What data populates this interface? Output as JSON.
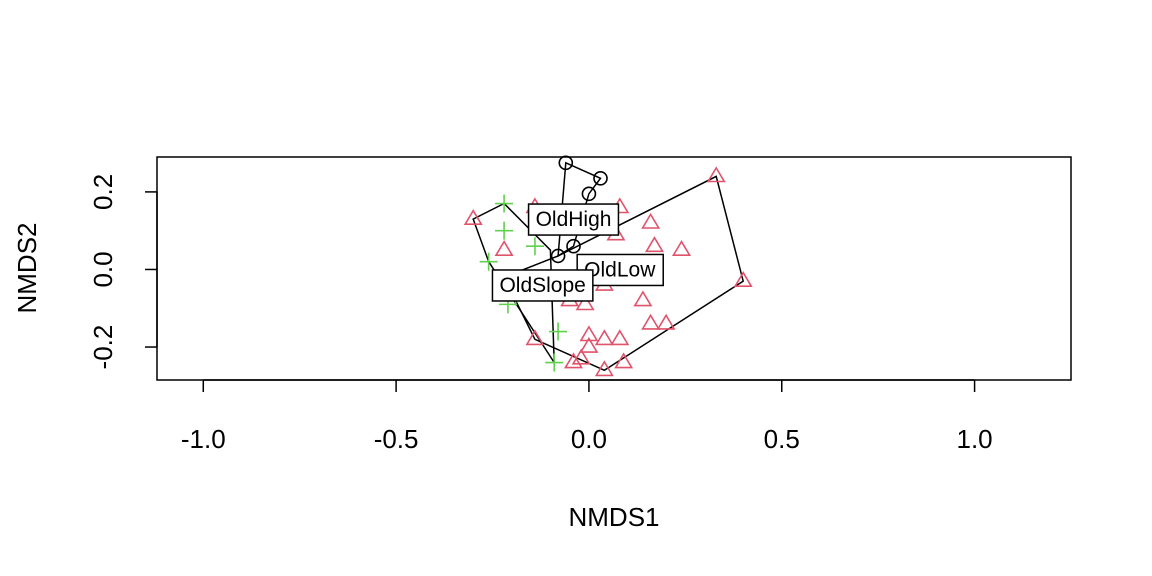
{
  "chart_data": {
    "type": "scatter",
    "title": "",
    "xlabel": "NMDS1",
    "ylabel": "NMDS2",
    "xlim": [
      -1.12,
      1.25
    ],
    "ylim": [
      -0.285,
      0.29
    ],
    "x_ticks": [
      -1.0,
      -0.5,
      0.0,
      0.5,
      1.0
    ],
    "x_tick_labels": [
      "-1.0",
      "-0.5",
      "0.0",
      "0.5",
      "1.0"
    ],
    "y_ticks": [
      -0.2,
      0.0,
      0.2
    ],
    "y_tick_labels": [
      "-0.2",
      "0.0",
      "0.2"
    ],
    "grid": false,
    "legend": "none",
    "series": [
      {
        "marker": "circle",
        "color": "#000000",
        "points": [
          [
            -0.06,
            0.275
          ],
          [
            0.03,
            0.235
          ],
          [
            0.0,
            0.195
          ],
          [
            -0.04,
            0.06
          ],
          [
            -0.08,
            0.035
          ]
        ]
      },
      {
        "marker": "triangle",
        "color": "#DF536B",
        "points": [
          [
            -0.3,
            0.13
          ],
          [
            -0.14,
            0.16
          ],
          [
            -0.22,
            0.05
          ],
          [
            0.08,
            0.16
          ],
          [
            0.16,
            0.12
          ],
          [
            0.07,
            0.09
          ],
          [
            0.17,
            0.06
          ],
          [
            0.24,
            0.05
          ],
          [
            0.33,
            0.24
          ],
          [
            0.4,
            -0.03
          ],
          [
            0.04,
            -0.04
          ],
          [
            0.14,
            -0.08
          ],
          [
            -0.05,
            -0.08
          ],
          [
            -0.01,
            -0.09
          ],
          [
            0.16,
            -0.14
          ],
          [
            0.2,
            -0.14
          ],
          [
            0.0,
            -0.17
          ],
          [
            0.04,
            -0.18
          ],
          [
            0.08,
            -0.18
          ],
          [
            0.0,
            -0.2
          ],
          [
            -0.14,
            -0.18
          ],
          [
            -0.02,
            -0.23
          ],
          [
            -0.04,
            -0.24
          ],
          [
            0.09,
            -0.24
          ],
          [
            0.04,
            -0.26
          ]
        ]
      },
      {
        "marker": "plus",
        "color": "#61D04F",
        "points": [
          [
            -0.22,
            0.17
          ],
          [
            -0.22,
            0.1
          ],
          [
            -0.14,
            0.06
          ],
          [
            -0.26,
            0.02
          ],
          [
            -0.19,
            -0.07
          ],
          [
            -0.21,
            -0.09
          ],
          [
            -0.08,
            -0.16
          ],
          [
            -0.09,
            -0.24
          ]
        ]
      }
    ],
    "hulls": [
      {
        "name": "OldHigh",
        "label_at": [
          -0.04,
          0.13
        ],
        "points": [
          [
            -0.06,
            0.275
          ],
          [
            0.03,
            0.235
          ],
          [
            0.0,
            0.195
          ],
          [
            -0.04,
            0.06
          ],
          [
            -0.08,
            0.035
          ]
        ]
      },
      {
        "name": "OldLow",
        "label_at": [
          0.08,
          0.0
        ],
        "points": [
          [
            -0.08,
            0.035
          ],
          [
            0.33,
            0.24
          ],
          [
            0.4,
            -0.03
          ],
          [
            0.04,
            -0.26
          ],
          [
            -0.14,
            -0.18
          ],
          [
            -0.22,
            -0.02
          ]
        ]
      },
      {
        "name": "OldSlope",
        "label_at": [
          -0.12,
          -0.04
        ],
        "points": [
          [
            -0.22,
            0.17
          ],
          [
            -0.1,
            0.05
          ],
          [
            -0.09,
            -0.24
          ],
          [
            -0.26,
            0.02
          ],
          [
            -0.3,
            0.13
          ]
        ]
      }
    ]
  }
}
